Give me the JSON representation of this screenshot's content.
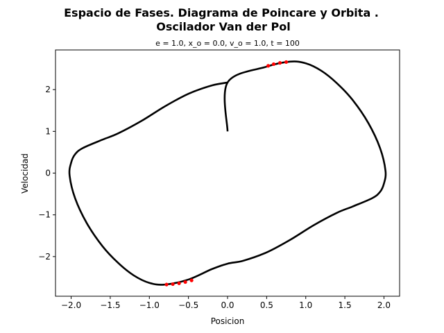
{
  "chart_data": {
    "type": "line",
    "title": "Espacio de Fases. Diagrama de Poincare y Orbita .",
    "title_line2": "Oscilador Van der Pol",
    "subtitle": "e = 1.0, x_o = 0.0, v_o = 1.0, t = 100",
    "xlabel": "Posicion",
    "ylabel": "Velocidad",
    "xlim": [
      -2.2,
      2.2
    ],
    "ylim": [
      -2.95,
      2.95
    ],
    "xticks": [
      -2.0,
      -1.5,
      -1.0,
      -0.5,
      0.0,
      0.5,
      1.0,
      1.5,
      2.0
    ],
    "xtick_labels": [
      "−2.0",
      "−1.5",
      "−1.0",
      "−0.5",
      "0.0",
      "0.5",
      "1.0",
      "1.5",
      "2.0"
    ],
    "yticks": [
      -2,
      -1,
      0,
      1,
      2
    ],
    "ytick_labels": [
      "−2",
      "−1",
      "0",
      "1",
      "2"
    ],
    "grid": false,
    "series": [
      {
        "kind": "orbit",
        "color": "#000000",
        "x": [
          0.0,
          0.0,
          0.5,
          0.8,
          1.0,
          1.2,
          1.4,
          1.6,
          1.8,
          1.95,
          2.02,
          2.0,
          1.95,
          1.85,
          1.6,
          1.4,
          1.1,
          0.8,
          0.5,
          0.2,
          0.0,
          -0.2,
          -0.5,
          -0.8,
          -1.0,
          -1.2,
          -1.4,
          -1.6,
          -1.8,
          -1.95,
          -2.02,
          -2.0,
          -1.95,
          -1.85,
          -1.6,
          -1.4,
          -1.1,
          -0.8,
          -0.5,
          -0.2,
          0.0
        ],
        "y": [
          1.0,
          2.17,
          2.55,
          2.67,
          2.63,
          2.45,
          2.15,
          1.75,
          1.2,
          0.6,
          0.05,
          -0.25,
          -0.45,
          -0.6,
          -0.8,
          -0.95,
          -1.25,
          -1.6,
          -1.9,
          -2.1,
          -2.17,
          -2.3,
          -2.55,
          -2.67,
          -2.63,
          -2.45,
          -2.15,
          -1.75,
          -1.2,
          -0.6,
          -0.05,
          0.25,
          0.45,
          0.6,
          0.8,
          0.95,
          1.25,
          1.6,
          1.9,
          2.1,
          2.17
        ]
      },
      {
        "kind": "poincare",
        "color": "#ff0000",
        "x": [
          0.52,
          0.59,
          0.67,
          0.75,
          -0.46,
          -0.54,
          -0.62,
          -0.7,
          -0.78
        ],
        "y": [
          2.57,
          2.61,
          2.64,
          2.66,
          -2.57,
          -2.61,
          -2.64,
          -2.66,
          -2.67
        ]
      }
    ]
  }
}
